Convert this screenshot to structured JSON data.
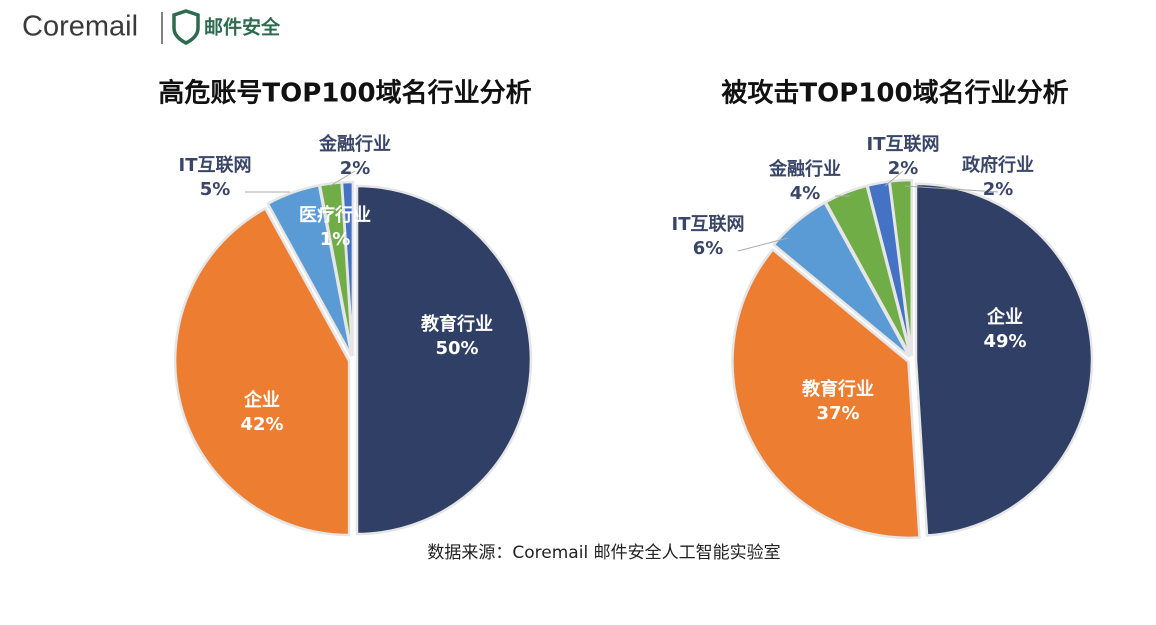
{
  "header": {
    "brand": "Coremail",
    "product": "邮件安全"
  },
  "chart_data": [
    {
      "type": "pie",
      "title": "高危账号TOP100域名行业分析",
      "categories": [
        "教育行业",
        "企业",
        "IT互联网",
        "金融行业",
        "医疗行业"
      ],
      "values": [
        50,
        42,
        5,
        2,
        1
      ],
      "value_labels": [
        "50%",
        "42%",
        "5%",
        "2%",
        "1%"
      ],
      "colors": [
        "#2f3f66",
        "#ed7d31",
        "#5b9bd5",
        "#70ad47",
        "#4472c4"
      ]
    },
    {
      "type": "pie",
      "title": "被攻击TOP100域名行业分析",
      "categories": [
        "企业",
        "教育行业",
        "IT互联网",
        "金融行业",
        "IT互联网",
        "政府行业"
      ],
      "values": [
        49,
        37,
        6,
        4,
        2,
        2
      ],
      "value_labels": [
        "49%",
        "37%",
        "6%",
        "4%",
        "2%",
        "2%"
      ],
      "colors": [
        "#2f3f66",
        "#ed7d31",
        "#5b9bd5",
        "#70ad47",
        "#4472c4",
        "#70ad47"
      ]
    }
  ],
  "source": "数据来源：Coremail 邮件安全人工智能实验室"
}
